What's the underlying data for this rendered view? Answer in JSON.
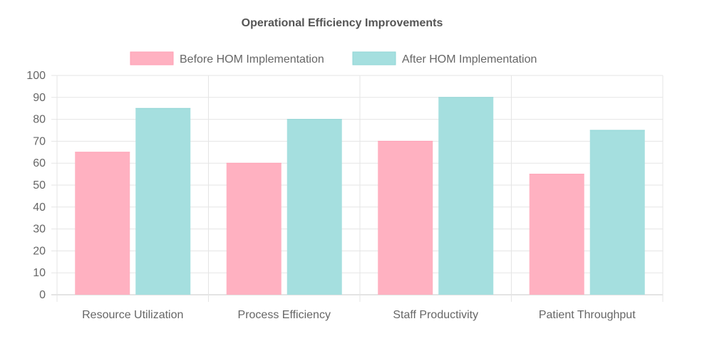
{
  "chart_data": {
    "type": "bar",
    "title": "Operational Efficiency Improvements",
    "categories": [
      "Resource Utilization",
      "Process Efficiency",
      "Staff Productivity",
      "Patient Throughput"
    ],
    "series": [
      {
        "name": "Before HOM Implementation",
        "values": [
          65,
          60,
          70,
          55
        ],
        "color": "#ffb1c1",
        "border_color": "#ff9fb4"
      },
      {
        "name": "After HOM Implementation",
        "values": [
          85,
          80,
          90,
          75
        ],
        "color": "#a5dfdf",
        "border_color": "#8fd4d4"
      }
    ],
    "ylim": [
      0,
      100
    ],
    "yticks": [
      0,
      10,
      20,
      30,
      40,
      50,
      60,
      70,
      80,
      90,
      100
    ],
    "grid": true,
    "legend_position": "top"
  }
}
